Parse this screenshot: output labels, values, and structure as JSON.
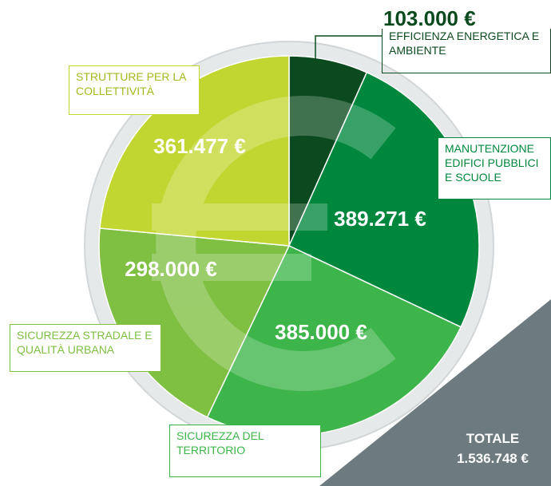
{
  "chart_data": {
    "type": "pie",
    "categories": [
      "EFFICIENZA ENERGETICA E AMBIENTE",
      "MANUTENZIONE EDIFICI PUBBLICI E SCUOLE",
      "SICUREZZA DEL TERRITORIO",
      "SICUREZZA STRADALE E QUALITÀ URBANA",
      "STRUTTURE PER LA COLLETTIVITÀ"
    ],
    "values": [
      103000,
      389271,
      385000,
      298000,
      361477
    ],
    "value_labels": [
      "103.000 €",
      "389.271 €",
      "385.000 €",
      "298.000 €",
      "361.477 €"
    ],
    "colors": [
      "#0b4a1e",
      "#00873e",
      "#3db54a",
      "#7fbf42",
      "#c2d631"
    ],
    "total": {
      "label": "TOTALE",
      "value": 1536748,
      "value_label": "1.536.748 €"
    }
  }
}
